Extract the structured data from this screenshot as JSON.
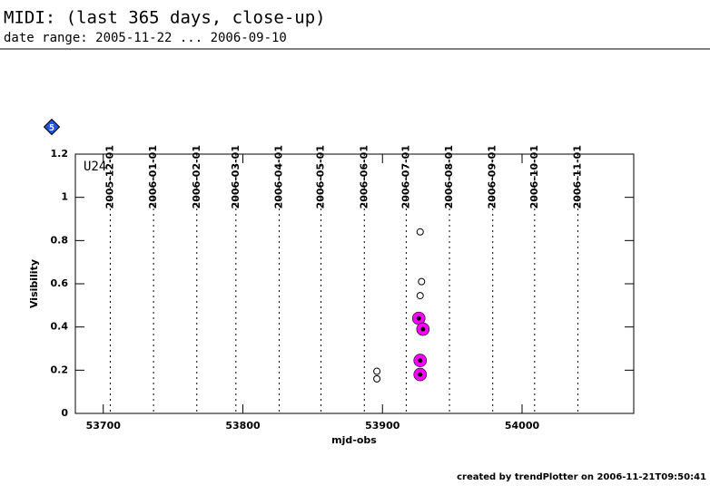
{
  "chart_data": {
    "type": "scatter",
    "title": "MIDI: (last 365 days, close-up)",
    "subtitle": "date range: 2005-11-22 ... 2006-09-10",
    "badge": "5",
    "panel_label": "U24",
    "x_label": "mjd-obs",
    "y_label": "Visibility",
    "footer": "created by trendPlotter on 2006-11-21T09:50:41",
    "xlim": [
      53680,
      54080
    ],
    "ylim": [
      0,
      1.2
    ],
    "xticks": [
      53700,
      53800,
      53900,
      54000
    ],
    "yticks": [
      0,
      0.2,
      0.4,
      0.6,
      0.8,
      1,
      1.2
    ],
    "date_ticks": [
      {
        "value": 53705,
        "label": "2005-12-01"
      },
      {
        "value": 53736,
        "label": "2006-01-01"
      },
      {
        "value": 53767,
        "label": "2006-02-01"
      },
      {
        "value": 53795,
        "label": "2006-03-01"
      },
      {
        "value": 53826,
        "label": "2006-04-01"
      },
      {
        "value": 53856,
        "label": "2006-05-01"
      },
      {
        "value": 53887,
        "label": "2006-06-01"
      },
      {
        "value": 53917,
        "label": "2006-07-01"
      },
      {
        "value": 53948,
        "label": "2006-08-01"
      },
      {
        "value": 53979,
        "label": "2006-09-01"
      },
      {
        "value": 54009,
        "label": "2006-10-01"
      },
      {
        "value": 54040,
        "label": "2006-11-01"
      }
    ],
    "series": [
      {
        "color": "#000000",
        "marker": "open",
        "x": [
          53927,
          53928,
          53927,
          53896,
          53896
        ],
        "values": [
          0.84,
          0.61,
          0.545,
          0.195,
          0.16
        ]
      },
      {
        "color": "#ff00ff",
        "marker": "highlight",
        "x": [
          53926,
          53929,
          53927,
          53927
        ],
        "values": [
          0.44,
          0.39,
          0.245,
          0.18
        ]
      }
    ]
  }
}
